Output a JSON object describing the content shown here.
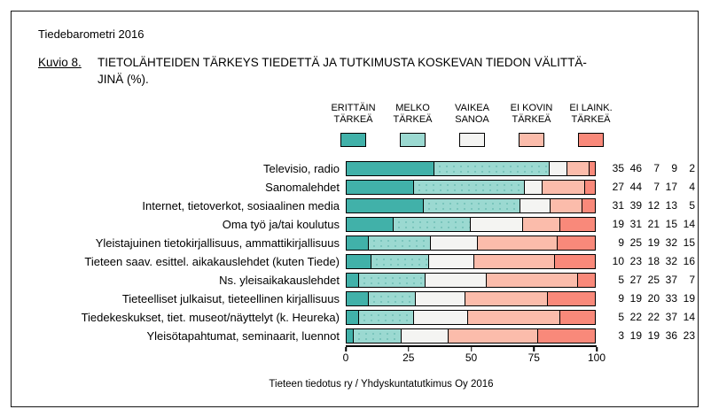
{
  "header": {
    "report": "Tiedebarometri 2016",
    "figure_label": "Kuvio 8.",
    "title_line1": "TIETOLÄHTEIDEN TÄRKEYS TIEDETTÄ JA TUTKIMUSTA KOSKEVAN TIEDON VÄLITTÄ-",
    "title_line2": "JINÄ (%)."
  },
  "chart_data": {
    "type": "bar",
    "stacked": true,
    "orientation": "horizontal",
    "unit": "%",
    "xlim": [
      0,
      100
    ],
    "x_ticks": [
      "0",
      "25",
      "50",
      "75",
      "100"
    ],
    "grid": false,
    "legend_position": "top",
    "legend": [
      {
        "label": "ERITTÄIN\nTÄRKEÄ",
        "slug": "erittain-tarkea",
        "color": "#41B1A9"
      },
      {
        "label": "MELKO\nTÄRKEÄ",
        "slug": "melko-tarkea",
        "color": "#9BD9D1"
      },
      {
        "label": "VAIKEA\nSANOA",
        "slug": "vaikea-sanoa",
        "color": "#F4F4F2"
      },
      {
        "label": "EI KOVIN\nTÄRKEÄ",
        "slug": "ei-kovin-tarkea",
        "color": "#FBBCAB"
      },
      {
        "label": "EI LAINK.\nTÄRKEÄ",
        "slug": "ei-laink-tarkea",
        "color": "#F9897A"
      }
    ],
    "categories": [
      "Televisio, radio",
      "Sanomalehdet",
      "Internet, tietoverkot, sosiaalinen media",
      "Oma työ ja/tai koulutus",
      "Yleistajuinen tietokirjallisuus, ammattikirjallisuus",
      "Tieteen saav. esittel. aikakauslehdet (kuten Tiede)",
      "Ns. yleisaikakauslehdet",
      "Tieteelliset julkaisut, tieteellinen kirjallisuus",
      "Tiedekeskukset, tiet. museot/näyttelyt (k. Heureka)",
      "Yleisötapahtumat, seminaarit, luennot"
    ],
    "series": [
      {
        "name": "ERITTÄIN TÄRKEÄ",
        "values": [
          35,
          27,
          31,
          19,
          9,
          10,
          5,
          9,
          5,
          3
        ]
      },
      {
        "name": "MELKO TÄRKEÄ",
        "values": [
          46,
          44,
          39,
          31,
          25,
          23,
          27,
          19,
          22,
          19
        ]
      },
      {
        "name": "VAIKEA SANOA",
        "values": [
          7,
          7,
          12,
          21,
          19,
          18,
          25,
          20,
          22,
          19
        ]
      },
      {
        "name": "EI KOVIN TÄRKEÄ",
        "values": [
          9,
          17,
          13,
          15,
          32,
          32,
          37,
          33,
          37,
          36
        ]
      },
      {
        "name": "EI LAINK. TÄRKEÄ",
        "values": [
          2,
          4,
          5,
          14,
          15,
          16,
          7,
          19,
          14,
          23
        ]
      }
    ]
  },
  "footer": {
    "source": "Tieteen tiedotus ry / Yhdyskuntatutkimus Oy 2016"
  }
}
